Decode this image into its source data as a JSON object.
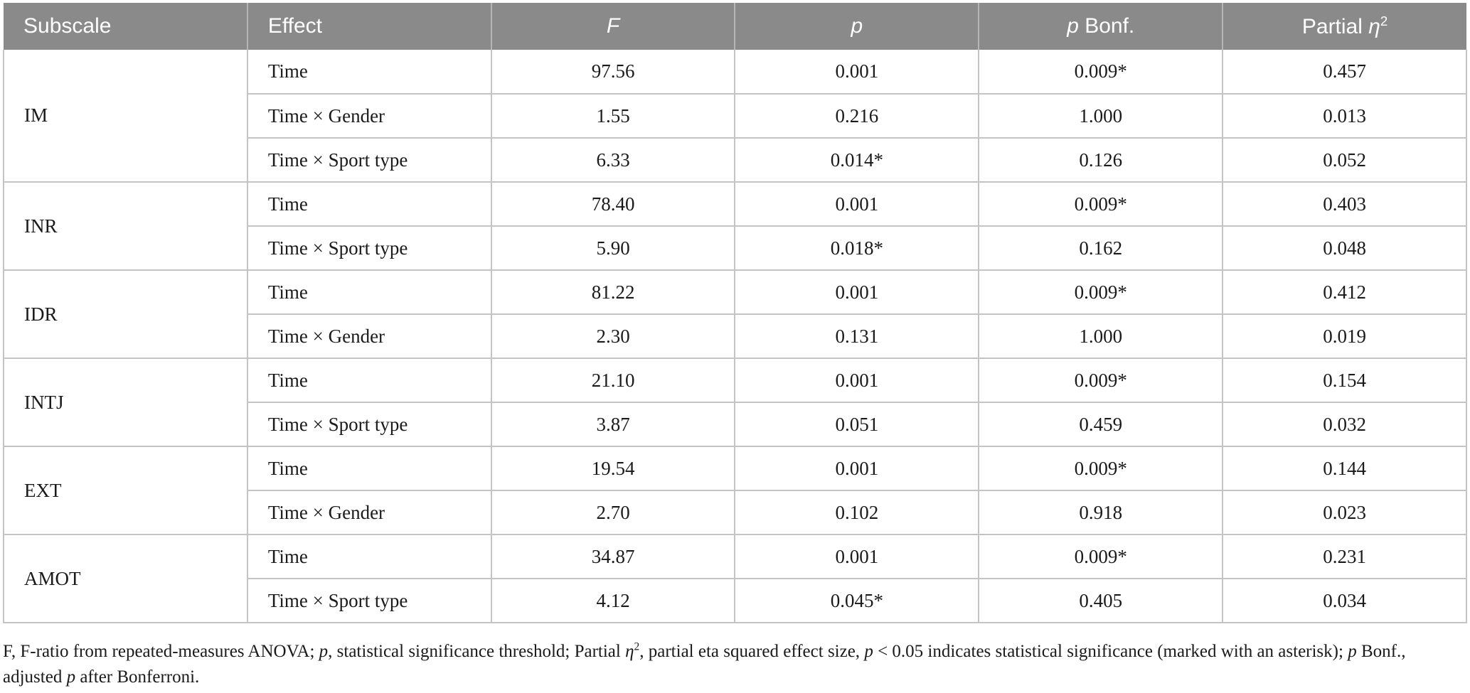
{
  "colors": {
    "header_bg": "#8a8a8a",
    "header_text": "#ffffff",
    "border": "#c4c4c4",
    "body_text": "#1a1a1a"
  },
  "table": {
    "headers": {
      "subscale": "Subscale",
      "effect": "Effect",
      "f": "F",
      "p": "p",
      "p_bonf_italic": "p",
      "p_bonf_rest": " Bonf.",
      "partial_eta_word": "Partial",
      "partial_eta_symbol": "η",
      "partial_eta_sup": "2"
    },
    "groups": [
      {
        "subscale": "IM",
        "rows": [
          {
            "effect": "Time",
            "f": "97.56",
            "p": "0.001",
            "p_bonf": "0.009*",
            "partial_eta": "0.457"
          },
          {
            "effect": "Time × Gender",
            "f": "1.55",
            "p": "0.216",
            "p_bonf": "1.000",
            "partial_eta": "0.013"
          },
          {
            "effect": "Time × Sport type",
            "f": "6.33",
            "p": "0.014*",
            "p_bonf": "0.126",
            "partial_eta": "0.052"
          }
        ]
      },
      {
        "subscale": "INR",
        "rows": [
          {
            "effect": "Time",
            "f": "78.40",
            "p": "0.001",
            "p_bonf": "0.009*",
            "partial_eta": "0.403"
          },
          {
            "effect": "Time × Sport type",
            "f": "5.90",
            "p": "0.018*",
            "p_bonf": "0.162",
            "partial_eta": "0.048"
          }
        ]
      },
      {
        "subscale": "IDR",
        "rows": [
          {
            "effect": "Time",
            "f": "81.22",
            "p": "0.001",
            "p_bonf": "0.009*",
            "partial_eta": "0.412"
          },
          {
            "effect": "Time × Gender",
            "f": "2.30",
            "p": "0.131",
            "p_bonf": "1.000",
            "partial_eta": "0.019"
          }
        ]
      },
      {
        "subscale": "INTJ",
        "rows": [
          {
            "effect": "Time",
            "f": "21.10",
            "p": "0.001",
            "p_bonf": "0.009*",
            "partial_eta": "0.154"
          },
          {
            "effect": "Time × Sport type",
            "f": "3.87",
            "p": "0.051",
            "p_bonf": "0.459",
            "partial_eta": "0.032"
          }
        ]
      },
      {
        "subscale": "EXT",
        "rows": [
          {
            "effect": "Time",
            "f": "19.54",
            "p": "0.001",
            "p_bonf": "0.009*",
            "partial_eta": "0.144"
          },
          {
            "effect": "Time × Gender",
            "f": "2.70",
            "p": "0.102",
            "p_bonf": "0.918",
            "partial_eta": "0.023"
          }
        ]
      },
      {
        "subscale": "AMOT",
        "rows": [
          {
            "effect": "Time",
            "f": "34.87",
            "p": "0.001",
            "p_bonf": "0.009*",
            "partial_eta": "0.231"
          },
          {
            "effect": "Time × Sport type",
            "f": "4.12",
            "p": "0.045*",
            "p_bonf": "0.405",
            "partial_eta": "0.034"
          }
        ]
      }
    ]
  },
  "footnote": {
    "segments": [
      {
        "t": "F, F-ratio from repeated-measures ANOVA; "
      },
      {
        "t": "p",
        "i": true
      },
      {
        "t": ", statistical significance threshold; Partial "
      },
      {
        "t": "η",
        "i": true
      },
      {
        "t": "2",
        "sup": true
      },
      {
        "t": ", partial eta squared effect size, "
      },
      {
        "t": "p",
        "i": true
      },
      {
        "t": " < 0.05 indicates statistical significance (marked with an asterisk); "
      },
      {
        "t": "p",
        "i": true
      },
      {
        "t": " Bonf., adjusted "
      },
      {
        "t": "p",
        "i": true
      },
      {
        "t": " after Bonferroni."
      }
    ]
  }
}
